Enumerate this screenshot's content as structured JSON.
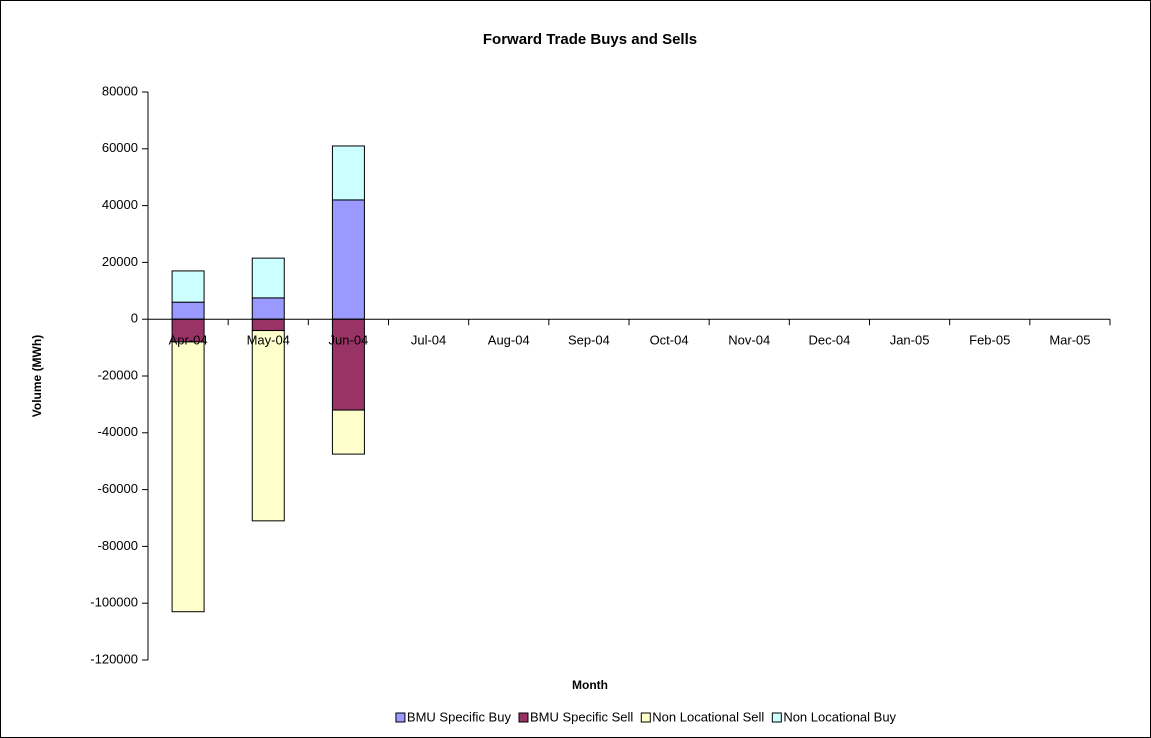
{
  "chart_data": {
    "type": "bar",
    "stacked": true,
    "title": "Forward Trade Buys and Sells",
    "x_label": "Month",
    "y_label": "Volume (MWh)",
    "categories": [
      "Apr-04",
      "May-04",
      "Jun-04",
      "Jul-04",
      "Aug-04",
      "Sep-04",
      "Oct-04",
      "Nov-04",
      "Dec-04",
      "Jan-05",
      "Feb-05",
      "Mar-05"
    ],
    "series": [
      {
        "name": "BMU Specific Buy",
        "color": "#9999ff",
        "values": [
          6000,
          7500,
          42000,
          null,
          null,
          null,
          null,
          null,
          null,
          null,
          null,
          null
        ]
      },
      {
        "name": "BMU Specific Sell",
        "color": "#993366",
        "values": [
          -8000,
          -4000,
          -32000,
          null,
          null,
          null,
          null,
          null,
          null,
          null,
          null,
          null
        ]
      },
      {
        "name": "Non Locational Sell",
        "color": "#ffffcc",
        "values": [
          -95000,
          -67000,
          -15500,
          null,
          null,
          null,
          null,
          null,
          null,
          null,
          null,
          null
        ]
      },
      {
        "name": "Non Locational Buy",
        "color": "#ccffff",
        "values": [
          11000,
          14000,
          19000,
          null,
          null,
          null,
          null,
          null,
          null,
          null,
          null,
          null
        ]
      }
    ],
    "ylim": [
      -120000,
      80000
    ],
    "yticks": [
      -120000,
      -100000,
      -80000,
      -60000,
      -40000,
      -20000,
      0,
      20000,
      40000,
      60000,
      80000
    ],
    "grid": false,
    "legend": "bottom"
  }
}
